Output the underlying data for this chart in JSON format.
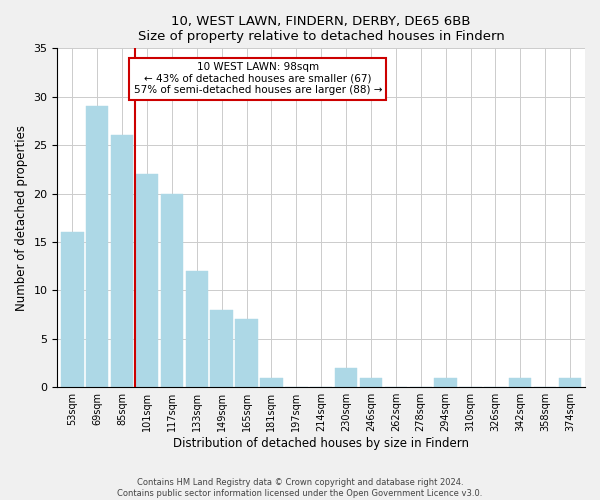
{
  "title": "10, WEST LAWN, FINDERN, DERBY, DE65 6BB",
  "subtitle": "Size of property relative to detached houses in Findern",
  "xlabel": "Distribution of detached houses by size in Findern",
  "ylabel": "Number of detached properties",
  "bar_color": "#add8e6",
  "bar_edge_color": "#add8e6",
  "categories": [
    "53sqm",
    "69sqm",
    "85sqm",
    "101sqm",
    "117sqm",
    "133sqm",
    "149sqm",
    "165sqm",
    "181sqm",
    "197sqm",
    "214sqm",
    "230sqm",
    "246sqm",
    "262sqm",
    "278sqm",
    "294sqm",
    "310sqm",
    "326sqm",
    "342sqm",
    "358sqm",
    "374sqm"
  ],
  "values": [
    16,
    29,
    26,
    22,
    20,
    12,
    8,
    7,
    1,
    0,
    0,
    2,
    1,
    0,
    0,
    1,
    0,
    0,
    1,
    0,
    1
  ],
  "ylim": [
    0,
    35
  ],
  "yticks": [
    0,
    5,
    10,
    15,
    20,
    25,
    30,
    35
  ],
  "redline_index": 2.5,
  "annotation_title": "10 WEST LAWN: 98sqm",
  "annotation_line1": "← 43% of detached houses are smaller (67)",
  "annotation_line2": "57% of semi-detached houses are larger (88) →",
  "annotation_box_color": "#ffffff",
  "annotation_box_edge": "#cc0000",
  "redline_color": "#cc0000",
  "footer1": "Contains HM Land Registry data © Crown copyright and database right 2024.",
  "footer2": "Contains public sector information licensed under the Open Government Licence v3.0.",
  "background_color": "#f0f0f0",
  "plot_background_color": "#ffffff",
  "grid_color": "#cccccc"
}
